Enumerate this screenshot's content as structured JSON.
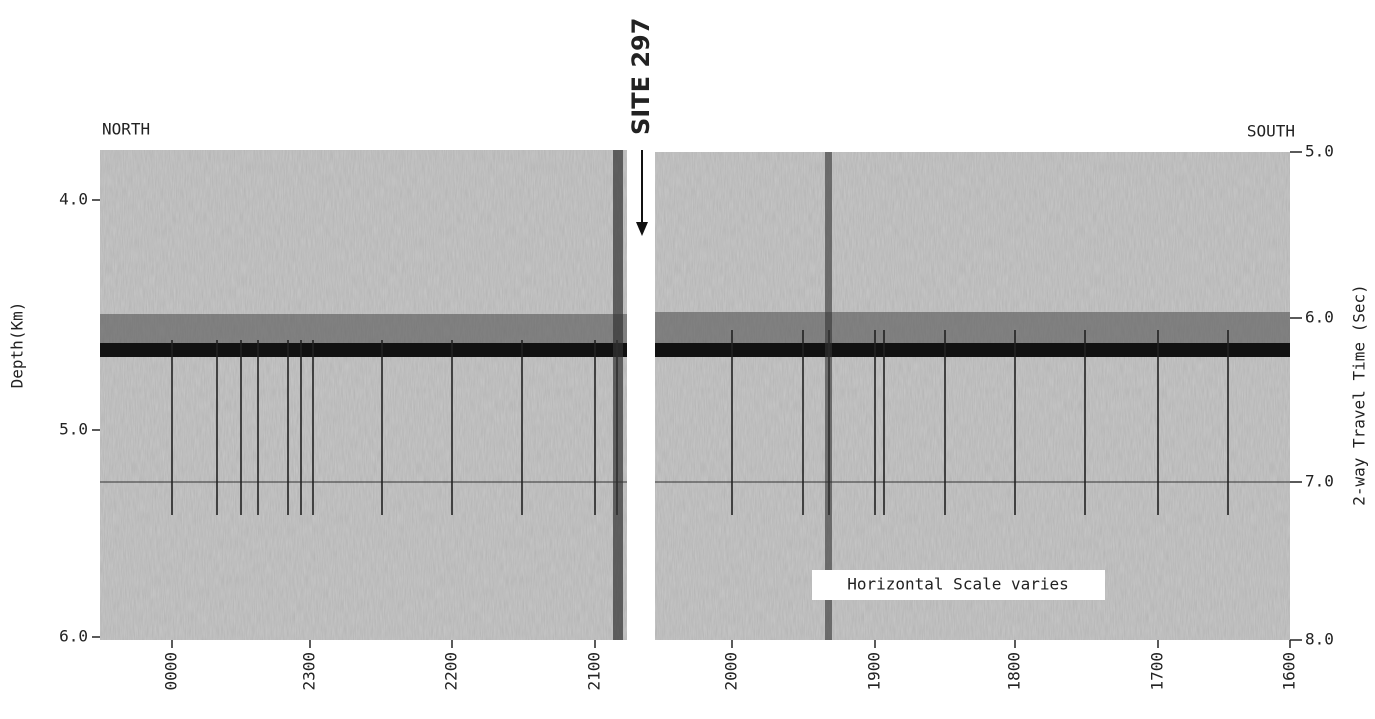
{
  "labels": {
    "north": "NORTH",
    "south": "SOUTH",
    "site": "SITE 297",
    "left_axis": "Depth(Km)",
    "right_axis": "2-way Travel Time (Sec)",
    "scale_note": "Horizontal Scale varies"
  },
  "left_ticks": [
    "4.0",
    "5.0",
    "6.0"
  ],
  "right_ticks": [
    "5.0",
    "6.0",
    "7.0",
    "8.0"
  ],
  "bottom_ticks": [
    "0000",
    "2300",
    "2200",
    "2100",
    "2000",
    "1900",
    "1800",
    "1700",
    "1600"
  ]
}
